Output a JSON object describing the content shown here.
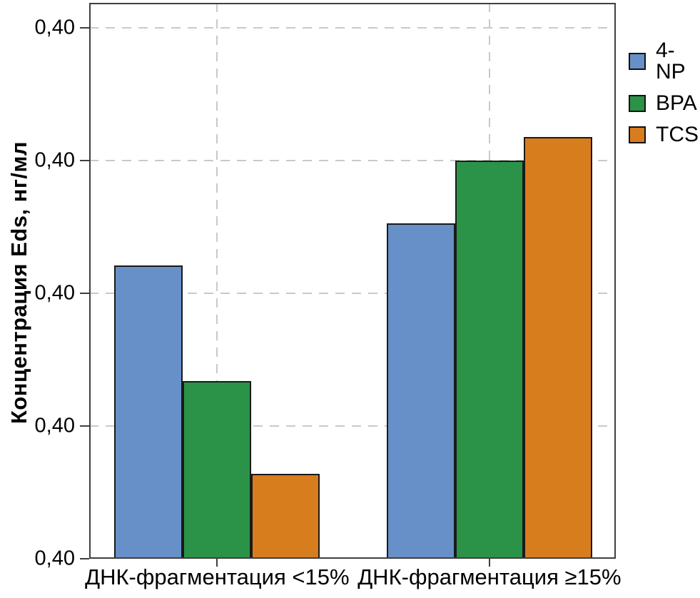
{
  "chart_data": {
    "type": "bar",
    "title": "",
    "xlabel": "",
    "ylabel": "Концентрация Eds, нг/мл",
    "categories": [
      "ДНК-фрагментация <15%",
      "ДНК-фрагментация ≥15%"
    ],
    "series": [
      {
        "name": "4-NP",
        "color": "#6890c8",
        "values": [
          2.21,
          2.53
        ]
      },
      {
        "name": "BPA",
        "color": "#2a9348",
        "values": [
          1.34,
          3.0
        ]
      },
      {
        "name": "TCS",
        "color": "#d87d1e",
        "values": [
          0.64,
          3.18
        ]
      }
    ],
    "value_note": "values are in y-axis gridline divisions estimated from pixels; every y tick label is displayed rounded as 0,40",
    "ylim": [
      0,
      4.19
    ],
    "yticks": [
      0,
      1,
      2,
      3,
      4
    ],
    "ytick_labels": [
      "0,40",
      "0,40",
      "0,40",
      "0,40",
      "0,40"
    ],
    "grid": "dashed horizontal line at each y tick and dashed vertical line at each category center",
    "legend_position": "outside upper right",
    "colors": {
      "grid": "#c9c9c9",
      "frame": "#3f3f3f",
      "bar_border": "#1a1a1a",
      "text": "#000000",
      "background": "#ffffff"
    }
  }
}
